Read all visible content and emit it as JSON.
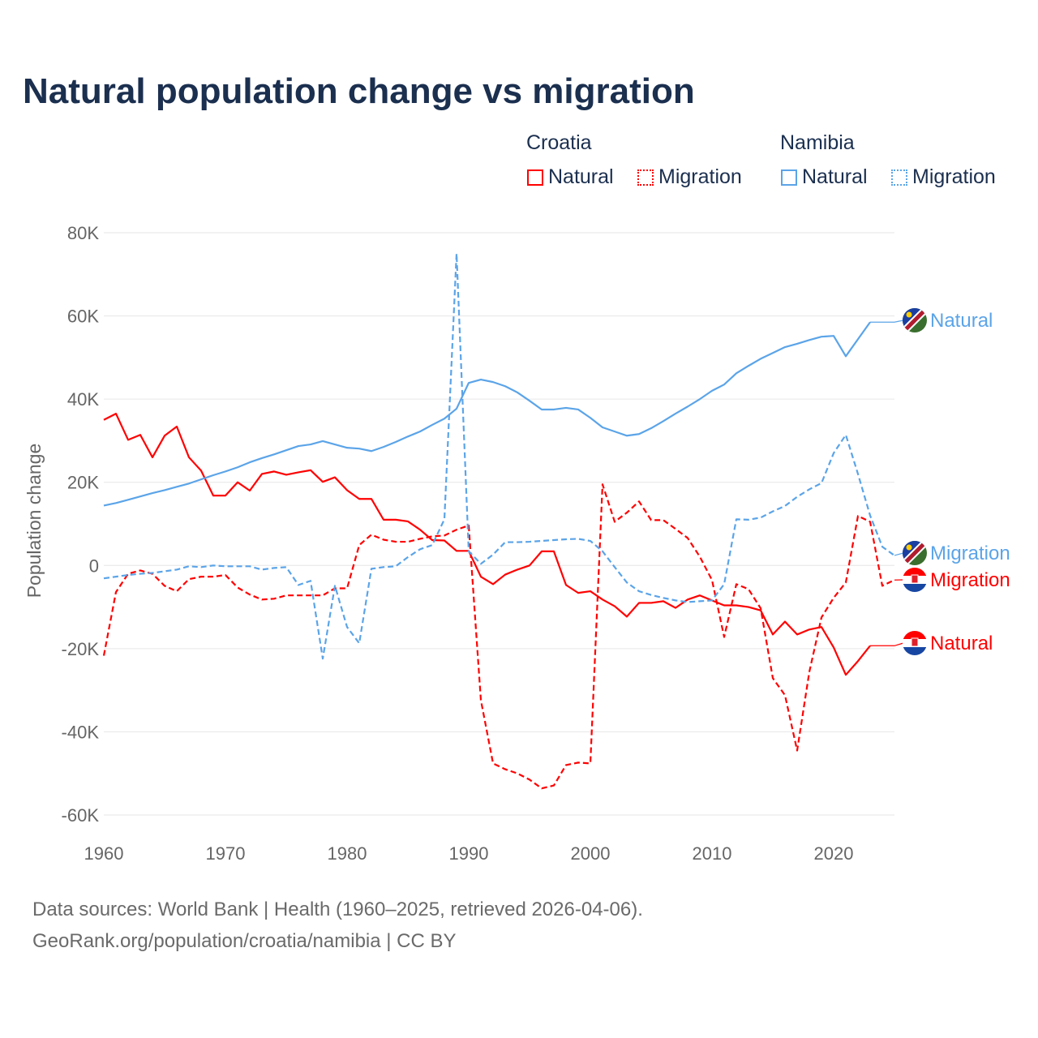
{
  "title": "Natural population change vs migration",
  "legend": {
    "groups": [
      {
        "name": "Croatia",
        "items": [
          {
            "label": "Natural",
            "style": "solid"
          },
          {
            "label": "Migration",
            "style": "dotted"
          }
        ]
      },
      {
        "name": "Namibia",
        "items": [
          {
            "label": "Natural",
            "style": "solid"
          },
          {
            "label": "Migration",
            "style": "dotted"
          }
        ]
      }
    ]
  },
  "footer": {
    "line1": "Data sources: World Bank | Health (1960–2025, retrieved 2026-04-06).",
    "line2": "GeoRank.org/population/croatia/namibia | CC BY"
  },
  "colors": {
    "croatia": "#ff0000",
    "namibia": "#5ba4e8",
    "grid": "#e6e6e6"
  },
  "chart_data": {
    "type": "line",
    "title": "Natural population change vs migration",
    "xlabel": "",
    "ylabel": "Population change",
    "xlim": [
      1960,
      2025
    ],
    "ylim": [
      -60000,
      80000
    ],
    "x_ticks": [
      1960,
      1970,
      1980,
      1990,
      2000,
      2010,
      2020
    ],
    "x_tick_labels": [
      "1960",
      "1970",
      "1980",
      "1990",
      "2000",
      "2010",
      "2020"
    ],
    "y_ticks": [
      80000,
      60000,
      40000,
      20000,
      0,
      -20000,
      -40000,
      -60000
    ],
    "y_tick_labels": [
      "80K",
      "60K",
      "40K",
      "20K",
      "0",
      "-20K",
      "-40K",
      "-60K"
    ],
    "grid": true,
    "legend_position": "top-right",
    "start_year": 1960,
    "series": [
      {
        "name": "Croatia Natural",
        "country": "Croatia",
        "end_label": "Natural",
        "flag": "croatia",
        "color": "#ff0000",
        "dash": false,
        "values": [
          35000,
          36500,
          30200,
          31400,
          26000,
          31200,
          33400,
          26000,
          22800,
          16800,
          16800,
          20000,
          18000,
          22000,
          22600,
          21800,
          22400,
          22900,
          20100,
          21200,
          18100,
          16000,
          16000,
          11000,
          11000,
          10600,
          8600,
          6100,
          6000,
          3500,
          3500,
          -2700,
          -4500,
          -2200,
          -1000,
          0,
          3400,
          3400,
          -4700,
          -6600,
          -6200,
          -8200,
          -9800,
          -12300,
          -9000,
          -9000,
          -8600,
          -10200,
          -8200,
          -7200,
          -8400,
          -9600,
          -9600,
          -10000,
          -10800,
          -16600,
          -13500,
          -16600,
          -15400,
          -14800,
          -19700,
          -26300,
          -23000,
          -19300
        ]
      },
      {
        "name": "Croatia Migration",
        "country": "Croatia",
        "end_label": "Migration",
        "flag": "croatia",
        "color": "#ff0000",
        "dash": true,
        "values": [
          -21700,
          -6400,
          -2000,
          -1200,
          -2000,
          -4900,
          -6200,
          -3300,
          -2700,
          -2700,
          -2300,
          -5300,
          -7000,
          -8200,
          -8000,
          -7200,
          -7200,
          -7200,
          -7200,
          -5500,
          -5500,
          4900,
          7400,
          6200,
          5700,
          5700,
          6400,
          7000,
          7200,
          8600,
          9600,
          -32400,
          -47600,
          -49000,
          -50000,
          -51500,
          -53600,
          -52900,
          -48000,
          -47400,
          -47600,
          19500,
          10500,
          12700,
          15400,
          10900,
          10900,
          8800,
          6600,
          2100,
          -3500,
          -17200,
          -4500,
          -5700,
          -10300,
          -27100,
          -31200,
          -44500,
          -25600,
          -12500,
          -7800,
          -4100,
          11900,
          10500,
          -4900,
          -3500
        ]
      },
      {
        "name": "Namibia Natural",
        "country": "Namibia",
        "end_label": "Natural",
        "flag": "namibia",
        "color": "#5ba4e8",
        "dash": false,
        "values": [
          14400,
          15000,
          15800,
          16600,
          17400,
          18100,
          18900,
          19700,
          20700,
          21700,
          22600,
          23600,
          24800,
          25800,
          26700,
          27700,
          28700,
          29100,
          29900,
          29100,
          28300,
          28100,
          27500,
          28500,
          29700,
          31000,
          32200,
          33800,
          35300,
          37700,
          43900,
          44700,
          44100,
          43100,
          41600,
          39600,
          37500,
          37500,
          37900,
          37500,
          35500,
          33200,
          32200,
          31200,
          31600,
          33000,
          34700,
          36500,
          38200,
          40000,
          42000,
          43500,
          46200,
          48000,
          49700,
          51100,
          52500,
          53300,
          54200,
          55000,
          55200,
          50300,
          54400,
          58500
        ]
      },
      {
        "name": "Namibia Migration",
        "country": "Namibia",
        "end_label": "Migration",
        "flag": "namibia",
        "color": "#5ba4e8",
        "dash": true,
        "values": [
          -3100,
          -2700,
          -2300,
          -2000,
          -1800,
          -1400,
          -1000,
          -200,
          -400,
          0,
          -200,
          -200,
          -200,
          -1000,
          -600,
          -400,
          -4700,
          -3700,
          -22400,
          -4900,
          -14800,
          -18700,
          -800,
          -400,
          -200,
          2000,
          3900,
          4900,
          11100,
          75000,
          3400,
          400,
          2600,
          5600,
          5600,
          5700,
          5900,
          6100,
          6300,
          6400,
          5900,
          3400,
          -400,
          -4100,
          -6200,
          -7100,
          -7800,
          -8400,
          -8800,
          -8600,
          -8400,
          -4500,
          11100,
          11000,
          11500,
          13000,
          14300,
          16500,
          18300,
          19800,
          27000,
          31400,
          22000,
          12000,
          4500,
          2400
        ]
      }
    ]
  }
}
